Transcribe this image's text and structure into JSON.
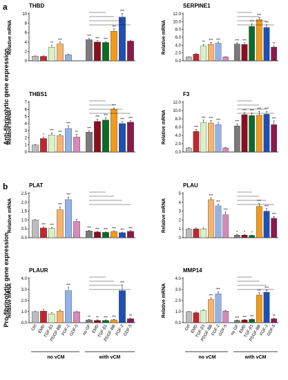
{
  "figure": {
    "panel_letters": [
      "a",
      "b"
    ],
    "side_labels": [
      "Anti-fibrinolytic gene expression",
      "Pro-fibrinolytic gene expression"
    ],
    "categories": [
      "Ctrl",
      "EMD",
      "TGF-β1",
      "PDGF-BB",
      "FGF-2",
      "GDF-5",
      "no GF",
      "EMD",
      "TGF-β1",
      "PDGF-BB",
      "FGF-2",
      "GDF-5"
    ],
    "group_labels": [
      "no vCM",
      "with vCM"
    ],
    "colors": [
      "#bdbdbd",
      "#c0272d",
      "#d9f2c4",
      "#f7b36b",
      "#93b3e6",
      "#d48bb8",
      "#7a7a7a",
      "#8b0f1e",
      "#0a6b2a",
      "#f29a1a",
      "#1f4fb5",
      "#8a1a4a"
    ]
  },
  "chart_data": [
    {
      "type": "bar",
      "title": "THBD",
      "ylabel": "Relative mRNA",
      "ylim": [
        0,
        10
      ],
      "yticks": [
        "0",
        "2",
        "4",
        "6",
        "8",
        "10"
      ],
      "values": [
        1.0,
        0.95,
        2.9,
        3.6,
        1.3,
        0,
        4.5,
        4.0,
        3.9,
        6.3,
        9.3,
        4.2
      ],
      "errors": [
        0.05,
        0.1,
        0.4,
        0.4,
        0.1,
        0,
        0.3,
        0.3,
        0.2,
        0.5,
        0.8,
        0.2
      ],
      "stars": [
        "",
        "",
        "**",
        "***",
        "",
        "",
        "***",
        "***",
        "***",
        "***",
        "***",
        ""
      ]
    },
    {
      "type": "bar",
      "title": "SERPINE1",
      "ylabel": "Relative mRNA",
      "ylim": [
        0,
        12
      ],
      "yticks": [
        "0.0",
        "2.0",
        "4.0",
        "6.0",
        "8.0",
        "10.0",
        "12.0"
      ],
      "values": [
        1.0,
        1.7,
        3.8,
        4.2,
        4.5,
        1.0,
        4.3,
        4.2,
        8.8,
        10.5,
        8.5,
        3.5
      ],
      "errors": [
        0.05,
        0.2,
        0.4,
        0.5,
        0.3,
        0.05,
        0.3,
        0.4,
        0.6,
        0.5,
        0.7,
        0.3
      ],
      "stars": [
        "",
        "",
        "**",
        "***",
        "***",
        "",
        "***",
        "***",
        "***",
        "***",
        "***",
        "**"
      ]
    },
    {
      "type": "bar",
      "title": "THBS1",
      "ylabel": "Relative mRNA",
      "ylim": [
        0,
        7
      ],
      "yticks": [
        "0",
        "1",
        "2",
        "3",
        "4",
        "5",
        "6",
        "7"
      ],
      "values": [
        1.0,
        1.9,
        2.4,
        2.3,
        3.3,
        2.1,
        2.8,
        4.3,
        4.5,
        6.0,
        4.0,
        4.2
      ],
      "errors": [
        0.05,
        0.2,
        0.3,
        0.2,
        0.4,
        0.4,
        0.2,
        0.3,
        0.3,
        0.2,
        0.3,
        0.2
      ],
      "stars": [
        "",
        "*",
        "***",
        "***",
        "***",
        "**",
        "***",
        "***",
        "***",
        "***",
        "***",
        "***"
      ]
    },
    {
      "type": "bar",
      "title": "F3",
      "ylabel": "Relative mRNA",
      "ylim": [
        0,
        12
      ],
      "yticks": [
        "0.0",
        "2.0",
        "4.0",
        "6.0",
        "8.0",
        "10.0",
        "12.0"
      ],
      "values": [
        1.0,
        5.0,
        7.1,
        7.0,
        6.6,
        1.0,
        6.3,
        9.0,
        8.8,
        8.9,
        9.1,
        6.6
      ],
      "errors": [
        0.05,
        0.4,
        0.6,
        0.6,
        0.6,
        0.1,
        0.5,
        0.5,
        0.6,
        0.9,
        0.7,
        0.9
      ],
      "stars": [
        "",
        "***",
        "***",
        "***",
        "***",
        "",
        "***",
        "***",
        "***",
        "***",
        "***",
        "***"
      ]
    },
    {
      "type": "bar",
      "title": "PLAT",
      "ylabel": "Relative mRNA",
      "ylim": [
        0,
        2.5
      ],
      "yticks": [
        "0.0",
        "0.5",
        "1.0",
        "1.5",
        "2.0",
        "2.5"
      ],
      "values": [
        1.0,
        0.55,
        0.52,
        1.58,
        2.15,
        0.92,
        0.38,
        0.32,
        0.3,
        0.35,
        0.28,
        0.36
      ],
      "errors": [
        0.02,
        0.06,
        0.06,
        0.15,
        0.15,
        0.12,
        0.04,
        0.03,
        0.03,
        0.04,
        0.03,
        0.04
      ],
      "stars": [
        "",
        "***",
        "***",
        "***",
        "***",
        "",
        "***",
        "***",
        "***",
        "***",
        "***",
        "***"
      ]
    },
    {
      "type": "bar",
      "title": "PLAU",
      "ylabel": "Relative mRNA",
      "ylim": [
        0,
        5
      ],
      "yticks": [
        "0",
        "1",
        "2",
        "3",
        "4",
        "5"
      ],
      "values": [
        1.0,
        1.0,
        1.0,
        4.3,
        3.6,
        2.6,
        0.3,
        0.3,
        0.25,
        3.55,
        3.0,
        2.2
      ],
      "errors": [
        0.05,
        0.1,
        0.1,
        0.2,
        0.2,
        0.3,
        0.05,
        0.05,
        0.05,
        0.3,
        0.3,
        0.2
      ],
      "stars": [
        "",
        "",
        "",
        "***",
        "***",
        "***",
        "*",
        "*",
        "*",
        "***",
        "***",
        "***"
      ]
    },
    {
      "type": "bar",
      "title": "PLAUR",
      "ylabel": "Relative mRNA",
      "ylim": [
        0,
        4
      ],
      "yticks": [
        "0.0",
        "1.0",
        "2.0",
        "3.0",
        "4.0"
      ],
      "values": [
        1.0,
        1.05,
        0.8,
        1.05,
        2.9,
        0.98,
        0.25,
        0.2,
        0.2,
        0.25,
        2.9,
        0.35
      ],
      "errors": [
        0.02,
        0.15,
        0.1,
        0.1,
        0.3,
        0.03,
        0.05,
        0.05,
        0.05,
        0.05,
        0.5,
        0.05
      ],
      "stars": [
        "",
        "",
        "",
        "",
        "***",
        "",
        "**",
        "**",
        "***",
        "***",
        "***",
        "**"
      ]
    },
    {
      "type": "bar",
      "title": "MMP14",
      "ylabel": "Relative mRNA",
      "ylim": [
        0,
        4
      ],
      "yticks": [
        "0.0",
        "1.0",
        "2.0",
        "3.0",
        "4.0"
      ],
      "values": [
        1.0,
        0.9,
        1.1,
        2.1,
        2.6,
        1.05,
        0.2,
        0.25,
        0.3,
        2.5,
        2.75,
        0.35
      ],
      "errors": [
        0.02,
        0.05,
        0.05,
        0.15,
        0.2,
        0.05,
        0.03,
        0.03,
        0.03,
        0.2,
        0.2,
        0.05
      ],
      "stars": [
        "",
        "",
        "",
        "***",
        "***",
        "",
        "***",
        "***",
        "***",
        "***",
        "***",
        "**"
      ]
    }
  ]
}
